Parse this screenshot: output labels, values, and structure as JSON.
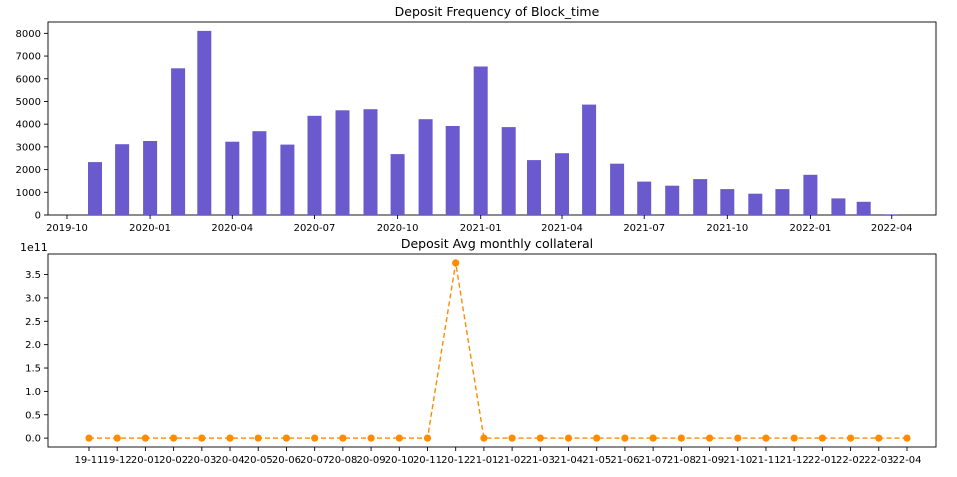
{
  "chart_data": [
    {
      "type": "bar",
      "title": "Deposit Frequency of Block_time",
      "xlabel": "",
      "ylabel": "",
      "color": "#6a5acd",
      "x_dates": [
        "2019-11",
        "2019-12",
        "2020-01",
        "2020-02",
        "2020-03",
        "2020-04",
        "2020-05",
        "2020-06",
        "2020-07",
        "2020-08",
        "2020-09",
        "2020-10",
        "2020-11",
        "2020-12",
        "2021-01",
        "2021-02",
        "2021-03",
        "2021-04",
        "2021-05",
        "2021-06",
        "2021-07",
        "2021-08",
        "2021-09",
        "2021-10",
        "2021-11",
        "2021-12",
        "2022-01",
        "2022-02",
        "2022-03",
        "2022-04"
      ],
      "values": [
        2330,
        3120,
        3260,
        6460,
        8110,
        3230,
        3690,
        3100,
        4370,
        4610,
        4660,
        2680,
        4220,
        3920,
        6540,
        3870,
        2420,
        2720,
        4860,
        2260,
        1470,
        1290,
        1580,
        1140,
        940,
        1140,
        1770,
        730,
        580,
        30
      ],
      "xlim": [
        "2019-09-10",
        "2022-05-20"
      ],
      "xticks": [
        "2019-10",
        "2020-01",
        "2020-04",
        "2020-07",
        "2020-10",
        "2021-01",
        "2021-04",
        "2021-07",
        "2021-10",
        "2022-01",
        "2022-04"
      ],
      "ylim": [
        0,
        8500
      ],
      "yticks": [
        0,
        1000,
        2000,
        3000,
        4000,
        5000,
        6000,
        7000,
        8000
      ],
      "ytick_labels": [
        "0",
        "1000",
        "2000",
        "3000",
        "4000",
        "5000",
        "6000",
        "7000",
        "8000"
      ]
    },
    {
      "type": "line",
      "title": "Deposit Avg monthly collateral",
      "xlabel": "",
      "ylabel": "",
      "color": "#ff8c00",
      "line_style": "dashed",
      "marker": "circle",
      "categories": [
        "19-11",
        "19-12",
        "20-01",
        "20-02",
        "20-03",
        "20-04",
        "20-05",
        "20-06",
        "20-07",
        "20-08",
        "20-09",
        "20-10",
        "20-11",
        "20-12",
        "21-01",
        "21-02",
        "21-03",
        "21-04",
        "21-05",
        "21-06",
        "21-07",
        "21-08",
        "21-09",
        "21-10",
        "21-11",
        "21-12",
        "22-01",
        "22-02",
        "22-03",
        "22-04"
      ],
      "values": [
        0,
        0,
        0,
        0,
        0,
        0,
        0,
        0,
        0,
        0,
        0,
        0,
        0,
        375000000000.0,
        0,
        0,
        0,
        0,
        0,
        0,
        0,
        0,
        0,
        0,
        0,
        0,
        0,
        0,
        0,
        0
      ],
      "offset_label": "1e11",
      "ylim": [
        -19000000000.0,
        394000000000.0
      ],
      "yticks": [
        0,
        50000000000.0,
        100000000000.0,
        150000000000.0,
        200000000000.0,
        250000000000.0,
        300000000000.0,
        350000000000.0
      ],
      "ytick_labels": [
        "0.0",
        "0.5",
        "1.0",
        "1.5",
        "2.0",
        "2.5",
        "3.0",
        "3.5"
      ]
    }
  ]
}
